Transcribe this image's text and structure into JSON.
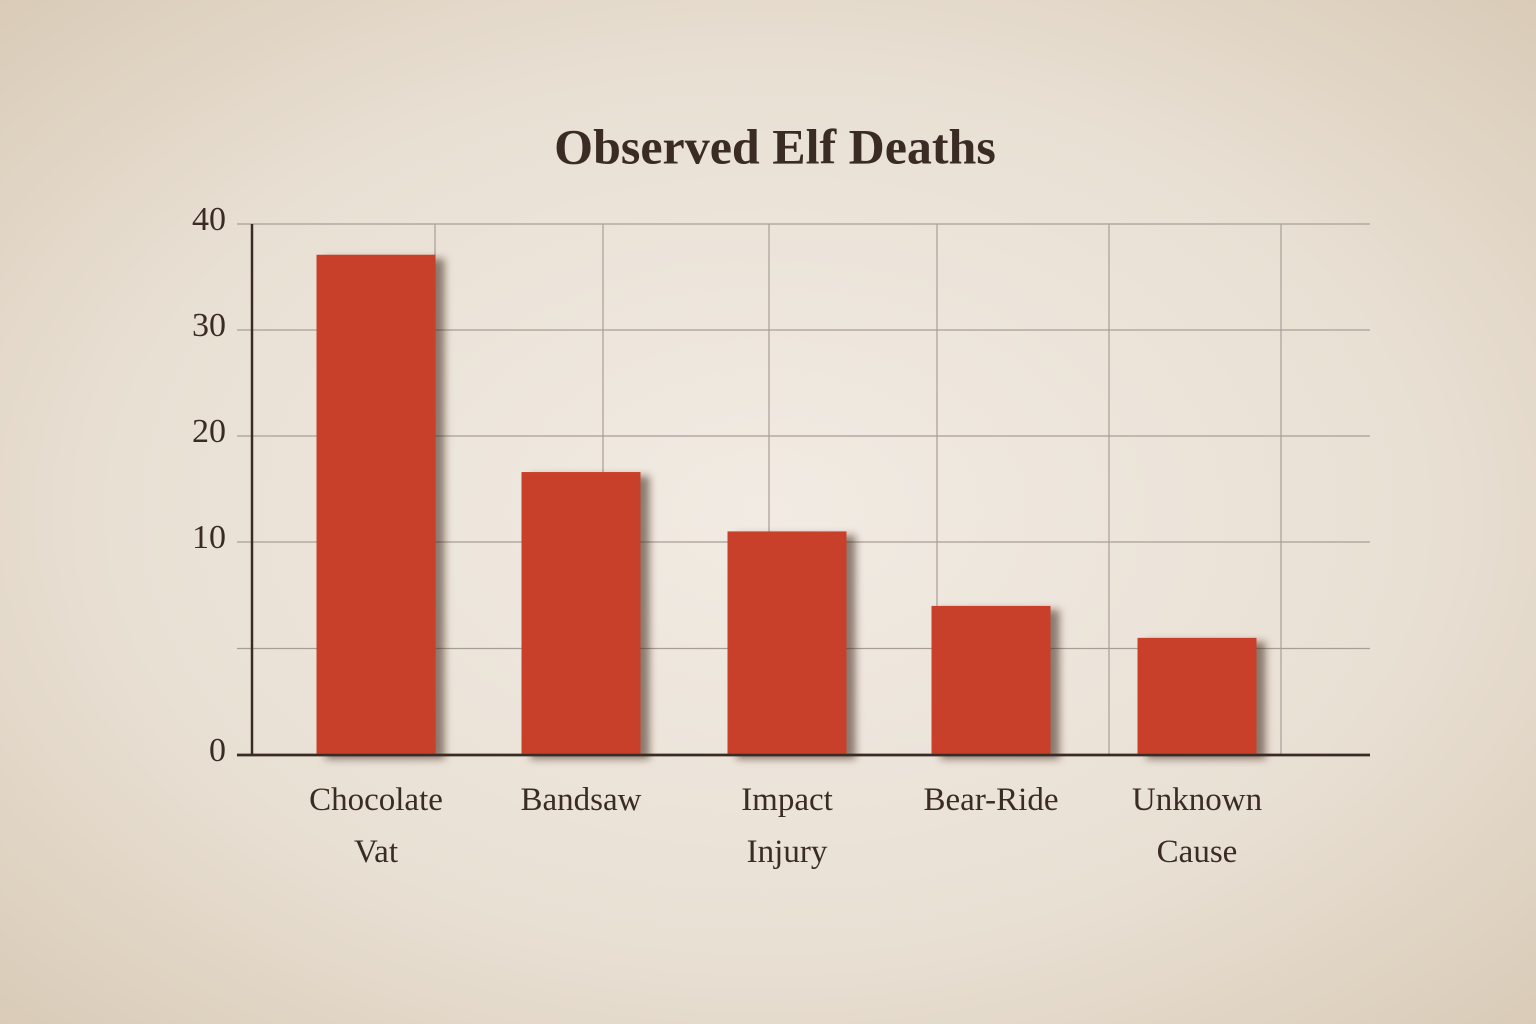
{
  "chart_data": {
    "type": "bar",
    "title": "Observed Elf Deaths",
    "categories": [
      "Chocolate Vat",
      "Bandsaw",
      "Impact Injury",
      "Bear-Ride",
      "Unknown Cause"
    ],
    "values": [
      37.1,
      16.6,
      11,
      7,
      5.5
    ],
    "color": "#c8402a",
    "ylim": [
      0,
      40
    ],
    "yticks": [
      0,
      10,
      20,
      30,
      40
    ],
    "grid": true
  }
}
